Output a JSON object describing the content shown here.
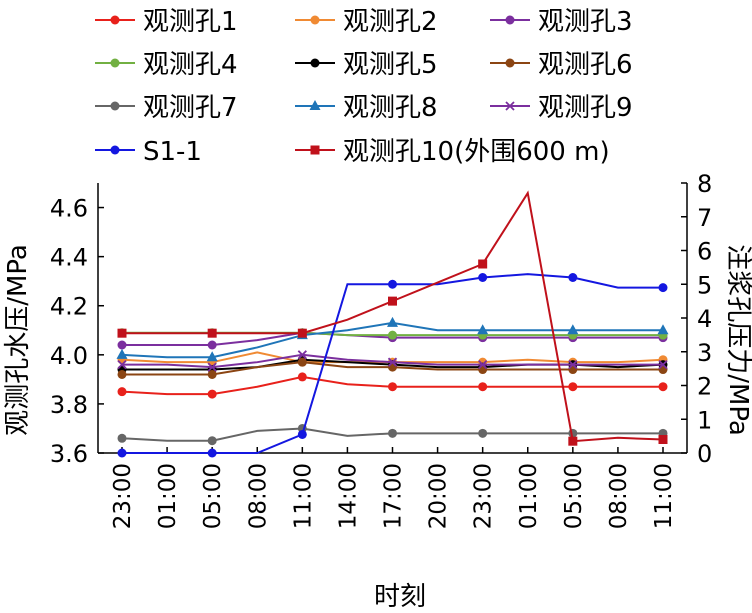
{
  "chart_data": {
    "type": "line",
    "xlabel": "时刻",
    "ylabel_left": "观测孔水压/MPa",
    "ylabel_right": "注浆孔压力/MPa",
    "ylim_left": [
      3.6,
      4.7
    ],
    "ylim_right": [
      0,
      8
    ],
    "yticks_left": [
      "3.6",
      "3.8",
      "4.0",
      "4.2",
      "4.4",
      "4.6"
    ],
    "yticks_right": [
      "0",
      "1",
      "2",
      "3",
      "4",
      "5",
      "6",
      "7",
      "8"
    ],
    "categories": [
      "23:00",
      "01:00",
      "05:00",
      "08:00",
      "11:00",
      "14:00",
      "17:00",
      "20:00",
      "23:00",
      "01:00",
      "05:00",
      "08:00",
      "11:00"
    ],
    "legend_position": "top",
    "series": [
      {
        "name": "观测孔1",
        "axis": "left",
        "color": "#e8211b",
        "marker": "circle",
        "values": [
          3.85,
          3.84,
          3.84,
          3.87,
          3.91,
          3.88,
          3.87,
          3.87,
          3.87,
          3.87,
          3.87,
          3.87,
          3.87
        ]
      },
      {
        "name": "观测孔2",
        "axis": "left",
        "color": "#f08a33",
        "marker": "circle",
        "values": [
          3.98,
          3.97,
          3.97,
          4.01,
          3.97,
          3.97,
          3.97,
          3.97,
          3.97,
          3.98,
          3.97,
          3.97,
          3.98
        ]
      },
      {
        "name": "观测孔3",
        "axis": "left",
        "color": "#7b2f9e",
        "marker": "circle",
        "values": [
          4.04,
          4.04,
          4.04,
          4.06,
          4.09,
          4.08,
          4.07,
          4.07,
          4.07,
          4.07,
          4.07,
          4.07,
          4.07
        ]
      },
      {
        "name": "观测孔4",
        "axis": "left",
        "color": "#72b042",
        "marker": "circle",
        "values": [
          4.09,
          4.09,
          4.09,
          4.09,
          4.09,
          4.08,
          4.08,
          4.08,
          4.08,
          4.08,
          4.08,
          4.08,
          4.08
        ]
      },
      {
        "name": "观测孔5",
        "axis": "left",
        "color": "#000000",
        "marker": "circle",
        "values": [
          3.94,
          3.94,
          3.94,
          3.95,
          3.98,
          3.97,
          3.96,
          3.95,
          3.95,
          3.96,
          3.96,
          3.95,
          3.96
        ]
      },
      {
        "name": "观测孔6",
        "axis": "left",
        "color": "#8b4513",
        "marker": "circle",
        "values": [
          3.92,
          3.92,
          3.92,
          3.95,
          3.97,
          3.95,
          3.95,
          3.94,
          3.94,
          3.94,
          3.94,
          3.94,
          3.94
        ]
      },
      {
        "name": "观测孔7",
        "axis": "left",
        "color": "#666666",
        "marker": "circle",
        "values": [
          3.66,
          3.65,
          3.65,
          3.69,
          3.7,
          3.67,
          3.68,
          3.68,
          3.68,
          3.68,
          3.68,
          3.68,
          3.68
        ]
      },
      {
        "name": "观测孔8",
        "axis": "left",
        "color": "#1f75b8",
        "marker": "triangle",
        "values": [
          4.0,
          3.99,
          3.99,
          4.03,
          4.08,
          4.1,
          4.13,
          4.1,
          4.1,
          4.1,
          4.1,
          4.1,
          4.1
        ]
      },
      {
        "name": "观测孔9",
        "axis": "left",
        "color": "#7b2f9e",
        "marker": "x",
        "values": [
          3.96,
          3.96,
          3.95,
          3.97,
          4.0,
          3.98,
          3.97,
          3.96,
          3.96,
          3.96,
          3.96,
          3.96,
          3.96
        ]
      },
      {
        "name": "S1-1",
        "axis": "right",
        "color": "#1417e0",
        "marker": "circle",
        "values": [
          0,
          0,
          0,
          0,
          0.55,
          5.0,
          5.0,
          5.0,
          5.2,
          5.3,
          5.2,
          4.9,
          4.9
        ]
      },
      {
        "name": "观测孔10(外围600 m)",
        "axis": "right",
        "color": "#c0111b",
        "marker": "square",
        "values": [
          3.55,
          3.55,
          3.55,
          3.55,
          3.55,
          3.95,
          4.5,
          5.05,
          5.6,
          7.7,
          0.35,
          0.45,
          0.4
        ],
        "marker_indices": [
          0,
          2,
          4,
          6,
          8,
          10,
          12
        ]
      }
    ]
  }
}
